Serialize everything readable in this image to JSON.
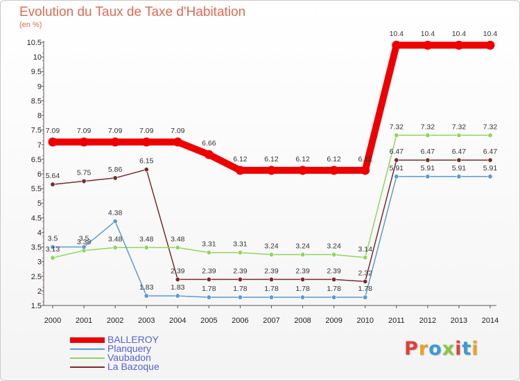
{
  "header": {
    "title": "Evolution du Taux de Taxe d'Habitation",
    "unit": "(en %)"
  },
  "logo": {
    "text": "Proxiti",
    "colors": [
      "#e0403a",
      "#f0a020",
      "#3a9ad9",
      "#8dc63f",
      "#e0403a",
      "#3a9ad9",
      "#f0a020"
    ]
  },
  "chart_data": {
    "type": "line",
    "title": "Evolution du Taux de Taxe d'Habitation",
    "ylabel": "(en %)",
    "xlabel": "",
    "x": [
      "2000",
      "2001",
      "2002",
      "2003",
      "2004",
      "2005",
      "2006",
      "2007",
      "2008",
      "2009",
      "2010",
      "2011",
      "2012",
      "2013",
      "2014"
    ],
    "ylim": [
      1.5,
      10.5
    ],
    "yticks": [
      "1.5",
      "2",
      "2.5",
      "3",
      "3.5",
      "4",
      "4.5",
      "5",
      "5.5",
      "6",
      "6.5",
      "7",
      "7.5",
      "8",
      "8.5",
      "9",
      "9.5",
      "10",
      "10.5"
    ],
    "grid": false,
    "legend": "bottom-left",
    "series": [
      {
        "name": "BALLEROY",
        "color": "#ee0000",
        "values": [
          7.09,
          7.09,
          7.09,
          7.09,
          7.09,
          6.66,
          6.12,
          6.12,
          6.12,
          6.12,
          6.12,
          10.4,
          10.4,
          10.4,
          10.4
        ],
        "labels": [
          "7.09",
          "7.09",
          "7.09",
          "7.09",
          "7.09",
          "6.66",
          "6.12",
          "6.12",
          "6.12",
          "6.12",
          "6.12",
          "10.4",
          "10.4",
          "10.4",
          "10.4"
        ]
      },
      {
        "name": "Planquery",
        "color": "#5a9bd0",
        "values": [
          3.5,
          3.5,
          4.38,
          1.83,
          1.83,
          1.78,
          1.78,
          1.78,
          1.78,
          1.78,
          1.78,
          5.91,
          5.91,
          5.91,
          5.91
        ],
        "labels": [
          "3.5",
          "3.5",
          "4.38",
          "1.83",
          "1.83",
          "1.78",
          "1.78",
          "1.78",
          "1.78",
          "1.78",
          "1.78",
          "5.91",
          "5.91",
          "5.91",
          "5.91"
        ]
      },
      {
        "name": "Vaubadon",
        "color": "#8fd65a",
        "values": [
          3.13,
          3.38,
          3.48,
          3.48,
          3.48,
          3.31,
          3.31,
          3.24,
          3.24,
          3.24,
          3.14,
          7.32,
          7.32,
          7.32,
          7.32
        ],
        "labels": [
          "3.13",
          "3.38",
          "3.48",
          "3.48",
          "3.48",
          "3.31",
          "3.31",
          "3.24",
          "3.24",
          "3.24",
          "3.14",
          "7.32",
          "7.32",
          "7.32",
          "7.32"
        ]
      },
      {
        "name": "La Bazoque",
        "color": "#7a2a2a",
        "values": [
          5.64,
          5.75,
          5.86,
          6.15,
          2.39,
          2.39,
          2.39,
          2.39,
          2.39,
          2.39,
          2.32,
          6.47,
          6.47,
          6.47,
          6.47
        ],
        "labels": [
          "5.64",
          "5.75",
          "5.86",
          "6.15",
          "2.39",
          "2.39",
          "2.39",
          "2.39",
          "2.39",
          "2.39",
          "2.32",
          "6.47",
          "6.47",
          "6.47",
          "6.47"
        ]
      }
    ]
  }
}
